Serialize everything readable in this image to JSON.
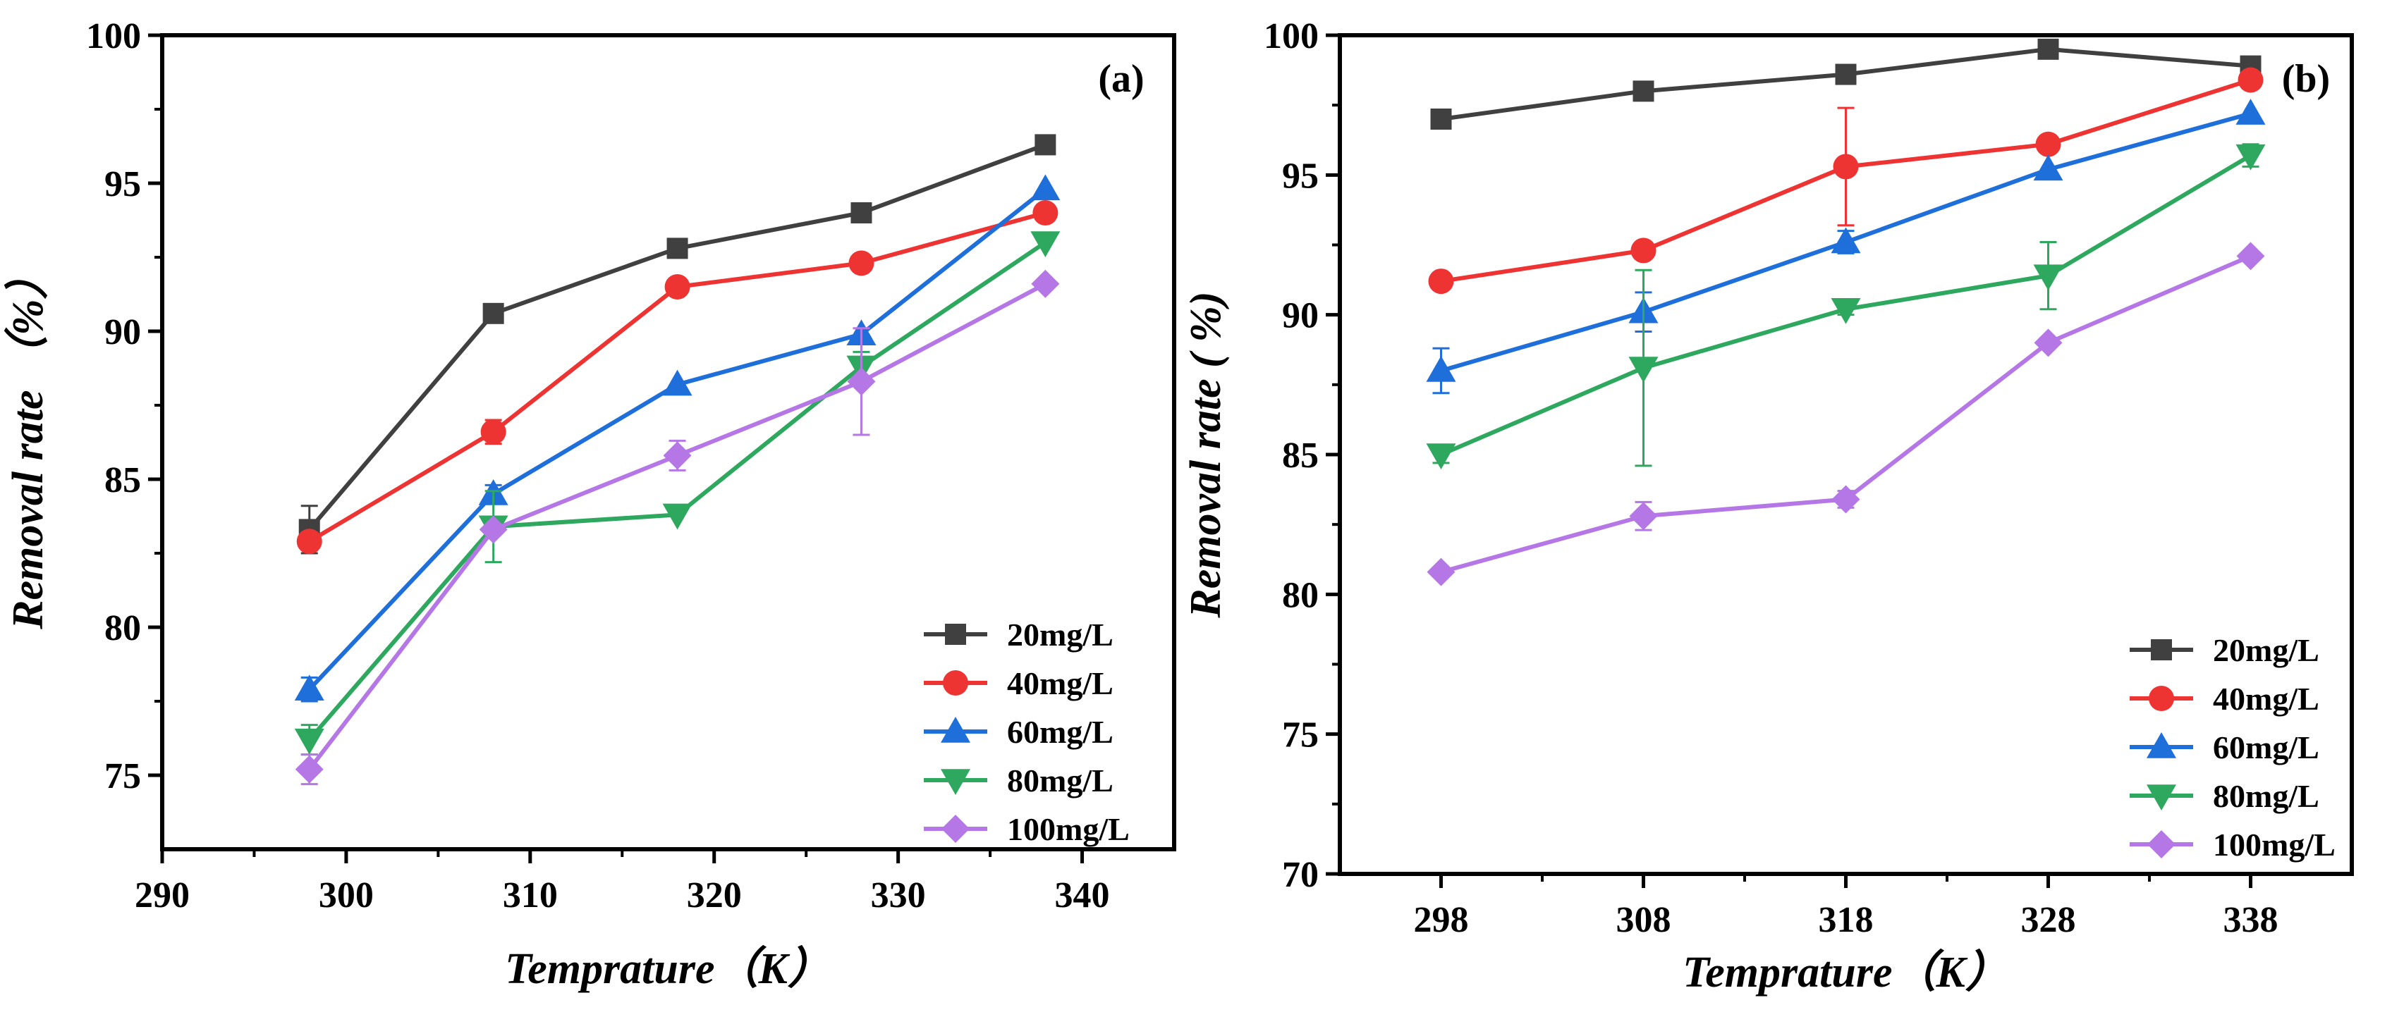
{
  "chart_data": [
    {
      "type": "line",
      "panel_label": "(a)",
      "xlabel": "Temprature（K）",
      "ylabel": "Removal rate （%）",
      "xlim": [
        290,
        345
      ],
      "ylim": [
        72.5,
        100
      ],
      "xticks": [
        290,
        300,
        310,
        320,
        330,
        340
      ],
      "yticks": [
        75,
        80,
        85,
        90,
        95,
        100
      ],
      "legend_position": "bottom-right",
      "x": [
        298,
        308,
        318,
        328,
        338
      ],
      "series": [
        {
          "name": "20mg/L",
          "color": "#404040",
          "marker": "square",
          "values": [
            83.3,
            90.6,
            92.8,
            94.0,
            96.3
          ],
          "errors": [
            0.8,
            0,
            0,
            0,
            0
          ]
        },
        {
          "name": "40mg/L",
          "color": "#EE3333",
          "marker": "circle",
          "values": [
            82.9,
            86.6,
            91.5,
            92.3,
            94.0
          ],
          "errors": [
            0.3,
            0.4,
            0,
            0.2,
            0
          ]
        },
        {
          "name": "60mg/L",
          "color": "#1E6FD9",
          "marker": "triangle-up",
          "values": [
            77.9,
            84.5,
            88.2,
            89.9,
            94.8
          ],
          "errors": [
            0.4,
            0.3,
            0,
            0,
            0
          ]
        },
        {
          "name": "80mg/L",
          "color": "#2EA85E",
          "marker": "triangle-down",
          "values": [
            76.2,
            83.4,
            83.8,
            88.8,
            93.0
          ],
          "errors": [
            0.5,
            1.2,
            0,
            0.5,
            0
          ]
        },
        {
          "name": "100mg/L",
          "color": "#B577E6",
          "marker": "diamond",
          "values": [
            75.2,
            83.3,
            85.8,
            88.3,
            91.6
          ],
          "errors": [
            0.5,
            0,
            0.5,
            1.8,
            0
          ]
        }
      ]
    },
    {
      "type": "line",
      "panel_label": "(b)",
      "xlabel": "Temprature（K）",
      "ylabel": "Removal rate ( %)",
      "xlim": [
        293,
        343
      ],
      "ylim": [
        70,
        100
      ],
      "xticks": [
        298,
        308,
        318,
        328,
        338
      ],
      "yticks": [
        70,
        75,
        80,
        85,
        90,
        95,
        100
      ],
      "legend_position": "bottom-right",
      "x": [
        298,
        308,
        318,
        328,
        338
      ],
      "series": [
        {
          "name": "20mg/L",
          "color": "#404040",
          "marker": "square",
          "values": [
            97.0,
            98.0,
            98.6,
            99.5,
            98.9
          ],
          "errors": [
            0.2,
            0,
            0,
            0,
            0
          ]
        },
        {
          "name": "40mg/L",
          "color": "#EE3333",
          "marker": "circle",
          "values": [
            91.2,
            92.3,
            95.3,
            96.1,
            98.4
          ],
          "errors": [
            0,
            0,
            2.1,
            0,
            0
          ]
        },
        {
          "name": "60mg/L",
          "color": "#1E6FD9",
          "marker": "triangle-up",
          "values": [
            88.0,
            90.1,
            92.6,
            95.2,
            97.2
          ],
          "errors": [
            0.8,
            0.7,
            0.4,
            0,
            0
          ]
        },
        {
          "name": "80mg/L",
          "color": "#2EA85E",
          "marker": "triangle-down",
          "values": [
            85.0,
            88.1,
            90.2,
            91.4,
            95.7
          ],
          "errors": [
            0.3,
            3.5,
            0.2,
            1.2,
            0.4
          ]
        },
        {
          "name": "100mg/L",
          "color": "#B577E6",
          "marker": "diamond",
          "values": [
            80.8,
            82.8,
            83.4,
            89.0,
            92.1
          ],
          "errors": [
            0,
            0.5,
            0.3,
            0,
            0
          ]
        }
      ]
    }
  ]
}
